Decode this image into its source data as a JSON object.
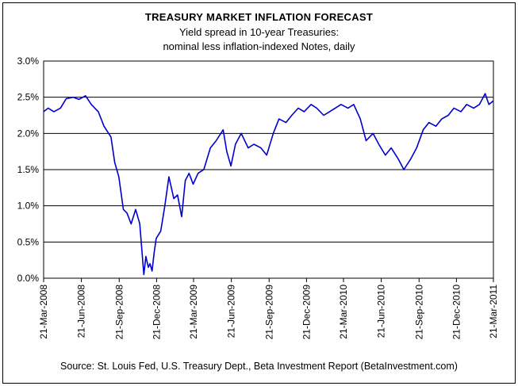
{
  "chart_data": {
    "type": "line",
    "title": "TREASURY MARKET INFLATION FORECAST",
    "subtitle_lines": [
      "Yield spread in 10-year Treasuries:",
      "nominal less inflation-indexed Notes, daily"
    ],
    "source": "Source: St. Louis Fed, U.S. Treasury Dept., Beta Investment Report (BetaInvestment.com)",
    "xlabel": "",
    "ylabel": "",
    "ylim": [
      0,
      3
    ],
    "yticks": [
      "0.0%",
      "0.5%",
      "1.0%",
      "1.5%",
      "2.0%",
      "2.5%",
      "3.0%"
    ],
    "xticks": [
      "21-Mar-2008",
      "21-Jun-2008",
      "21-Sep-2008",
      "21-Dec-2008",
      "21-Mar-2009",
      "21-Jun-2009",
      "21-Sep-2009",
      "21-Dec-2009",
      "21-Mar-2010",
      "21-Jun-2010",
      "21-Sep-2010",
      "21-Dec-2010",
      "21-Mar-2011"
    ],
    "grid": true,
    "line_color": "#0000CC",
    "series": [
      {
        "x": [
          "2008-03-21",
          "2008-04-01",
          "2008-04-15",
          "2008-05-01",
          "2008-05-15",
          "2008-06-01",
          "2008-06-15",
          "2008-07-01",
          "2008-07-15",
          "2008-08-01",
          "2008-08-15",
          "2008-09-01",
          "2008-09-10",
          "2008-09-20",
          "2008-10-01",
          "2008-10-10",
          "2008-10-20",
          "2008-10-31",
          "2008-11-10",
          "2008-11-20",
          "2008-11-25",
          "2008-12-01",
          "2008-12-05",
          "2008-12-10",
          "2008-12-15",
          "2008-12-20",
          "2008-12-31",
          "2009-01-10",
          "2009-01-20",
          "2009-02-01",
          "2009-02-10",
          "2009-02-20",
          "2009-03-01",
          "2009-03-10",
          "2009-03-20",
          "2009-04-01",
          "2009-04-15",
          "2009-05-01",
          "2009-05-15",
          "2009-06-01",
          "2009-06-10",
          "2009-06-20",
          "2009-07-01",
          "2009-07-15",
          "2009-08-01",
          "2009-08-15",
          "2009-09-01",
          "2009-09-15",
          "2009-10-01",
          "2009-10-15",
          "2009-11-01",
          "2009-11-15",
          "2009-12-01",
          "2009-12-15",
          "2010-01-01",
          "2010-01-15",
          "2010-02-01",
          "2010-02-15",
          "2010-03-01",
          "2010-03-15",
          "2010-04-01",
          "2010-04-15",
          "2010-05-01",
          "2010-05-15",
          "2010-06-01",
          "2010-06-15",
          "2010-07-01",
          "2010-07-15",
          "2010-08-01",
          "2010-08-15",
          "2010-09-01",
          "2010-09-15",
          "2010-10-01",
          "2010-10-15",
          "2010-11-01",
          "2010-11-15",
          "2010-12-01",
          "2010-12-15",
          "2011-01-01",
          "2011-01-15",
          "2011-02-01",
          "2011-02-15",
          "2011-03-01",
          "2011-03-10",
          "2011-03-21"
        ],
        "y": [
          2.3,
          2.35,
          2.3,
          2.35,
          2.48,
          2.5,
          2.47,
          2.52,
          2.4,
          2.3,
          2.1,
          1.95,
          1.6,
          1.4,
          0.95,
          0.9,
          0.75,
          0.95,
          0.75,
          0.05,
          0.3,
          0.15,
          0.2,
          0.1,
          0.35,
          0.55,
          0.65,
          1.0,
          1.4,
          1.1,
          1.15,
          0.85,
          1.35,
          1.45,
          1.3,
          1.45,
          1.5,
          1.8,
          1.9,
          2.05,
          1.75,
          1.55,
          1.85,
          2.0,
          1.8,
          1.85,
          1.8,
          1.7,
          2.0,
          2.2,
          2.15,
          2.25,
          2.35,
          2.3,
          2.4,
          2.35,
          2.25,
          2.3,
          2.35,
          2.4,
          2.35,
          2.4,
          2.2,
          1.9,
          2.0,
          1.85,
          1.7,
          1.8,
          1.65,
          1.5,
          1.65,
          1.8,
          2.05,
          2.15,
          2.1,
          2.2,
          2.25,
          2.35,
          2.3,
          2.4,
          2.35,
          2.4,
          2.55,
          2.4,
          2.45
        ]
      }
    ]
  }
}
